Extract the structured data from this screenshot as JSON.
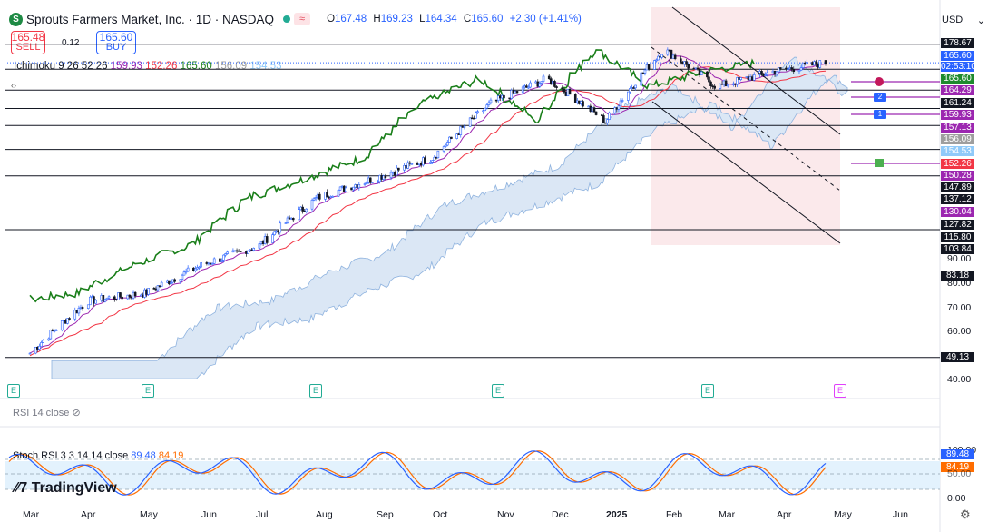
{
  "header": {
    "symbol": "Sprouts Farmers Market, Inc. · 1D · NASDAQ",
    "logo_letter": "S",
    "o_label": "O",
    "o": "167.48",
    "h_label": "H",
    "h": "169.23",
    "l_label": "L",
    "l": "164.34",
    "c_label": "C",
    "c": "165.60",
    "change": "+2.30 (+1.41%)",
    "currency": "USD"
  },
  "order": {
    "sell_price": "165.48",
    "sell_label": "SELL",
    "spread": "0.12",
    "buy_price": "165.60",
    "buy_label": "BUY"
  },
  "ichimoku": {
    "label": "Ichimoku 9 26 52 26",
    "v1": "159.93",
    "v2": "152.26",
    "v3": "165.60",
    "v4": "156.09",
    "v5": "154.53"
  },
  "price_labels": [
    {
      "text": "178.67",
      "bg": "#131722"
    },
    {
      "text": "165.60",
      "bg": "#2962ff"
    },
    {
      "text": "02:53:10",
      "bg": "#2962ff"
    },
    {
      "text": "165.60",
      "bg": "#1e8a2e"
    },
    {
      "text": "164.29",
      "bg": "#9c27b0"
    },
    {
      "text": "161.24",
      "bg": "#131722"
    },
    {
      "text": "159.93",
      "bg": "#9c27b0"
    },
    {
      "text": "157.13",
      "bg": "#9c27b0"
    },
    {
      "text": "156.09",
      "bg": "#9e9e9e"
    },
    {
      "text": "154.53",
      "bg": "#90caf9"
    },
    {
      "text": "152.26",
      "bg": "#f23645"
    },
    {
      "text": "150.28",
      "bg": "#9c27b0"
    },
    {
      "text": "147.89",
      "bg": "#131722"
    },
    {
      "text": "137.12",
      "bg": "#131722"
    },
    {
      "text": "130.04",
      "bg": "#9c27b0"
    },
    {
      "text": "127.82",
      "bg": "#131722"
    },
    {
      "text": "115.80",
      "bg": "#131722"
    },
    {
      "text": "103.84",
      "bg": "#131722"
    },
    {
      "text": "83.18",
      "bg": "#131722"
    },
    {
      "text": "49.13",
      "bg": "#131722"
    }
  ],
  "y_ticks": [
    "90.00",
    "80.00",
    "70.00",
    "60.00",
    "40.00"
  ],
  "rsi": {
    "label": "RSI 14 close"
  },
  "stoch": {
    "label": "Stoch RSI 3 3 14 14 close",
    "k": "89.48",
    "d": "84.19",
    "axis_top": "100.00",
    "axis_bottom": "0.00",
    "k_val": "89.48",
    "d_val": "84.19",
    "level": "50.00"
  },
  "x_labels": [
    "Mar",
    "Apr",
    "May",
    "Jun",
    "Jul",
    "Aug",
    "Sep",
    "Oct",
    "Nov",
    "Dec",
    "2025",
    "Feb",
    "Mar",
    "Apr",
    "May",
    "Jun"
  ],
  "earnings_label": "E",
  "brand": "TradingView",
  "marker_labels": [
    "2",
    "1"
  ],
  "colors": {
    "green": "#1a7f1a",
    "red": "#f23645",
    "purple": "#9c27b0",
    "blue": "#2962ff",
    "cloud": "#b2cbe8"
  },
  "chart_data": {
    "type": "candlestick",
    "price_scale": "log",
    "ylim": [
      40,
      185
    ],
    "horizontal_levels": [
      178.67,
      161.24,
      147.89,
      137.12,
      127.82,
      115.8,
      103.84,
      83.18,
      49.13
    ],
    "close_approx": [
      {
        "x": "2024-03-01",
        "y": 50
      },
      {
        "x": "2024-04-01",
        "y": 62
      },
      {
        "x": "2024-05-01",
        "y": 64
      },
      {
        "x": "2024-06-01",
        "y": 72
      },
      {
        "x": "2024-07-01",
        "y": 78
      },
      {
        "x": "2024-08-01",
        "y": 95
      },
      {
        "x": "2024-09-01",
        "y": 103
      },
      {
        "x": "2024-10-01",
        "y": 112
      },
      {
        "x": "2024-11-01",
        "y": 140
      },
      {
        "x": "2024-12-01",
        "y": 155
      },
      {
        "x": "2025-01-01",
        "y": 130
      },
      {
        "x": "2025-02-01",
        "y": 175
      },
      {
        "x": "2025-03-01",
        "y": 150
      },
      {
        "x": "2025-04-01",
        "y": 160
      },
      {
        "x": "2025-04-28",
        "y": 165.6
      }
    ]
  }
}
